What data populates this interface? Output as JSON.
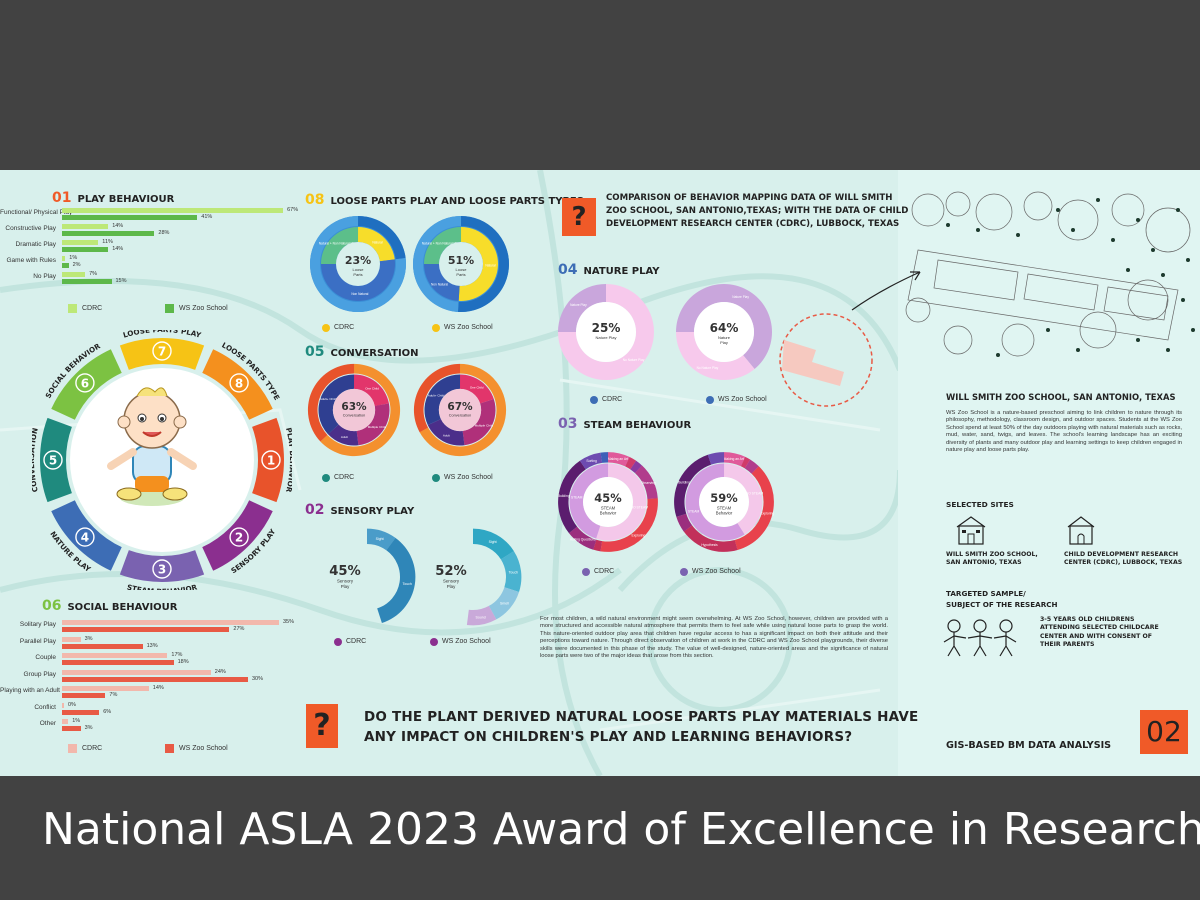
{
  "caption": "National ASLA 2023 Award of Excellence in Research",
  "colors": {
    "cdrc_light": "#bde878",
    "cdrc_green": "#5db84a",
    "social_light": "#f2b8ac",
    "social_red": "#e85a45",
    "poster_bg": "#d8f0ec",
    "accent_orange": "#f05a28"
  },
  "sec01": {
    "num": "01",
    "title": "PLAY BEHAVIOUR"
  },
  "sec08": {
    "num": "08",
    "title": "LOOSE PARTS PLAY AND LOOSE PARTS TYPES"
  },
  "sec05": {
    "num": "05",
    "title": "CONVERSATION"
  },
  "sec02": {
    "num": "02",
    "title": "SENSORY PLAY"
  },
  "sec06": {
    "num": "06",
    "title": "SOCIAL BEHAVIOUR"
  },
  "sec04": {
    "num": "04",
    "title": "NATURE PLAY"
  },
  "sec03": {
    "num": "03",
    "title": "STEAM BEHAVIOUR"
  },
  "comparison": {
    "q": "?",
    "lines": [
      "COMPARISON OF BEHAVIOR MAPPING DATA OF WILL SMITH",
      "ZOO SCHOOL, SAN ANTONIO,TEXAS; WITH THE DATA OF CHILD",
      "DEVELOPMENT RESEARCH CENTER (CDRC), LUBBOCK, TEXAS"
    ]
  },
  "legend": {
    "cdrc": "CDRC",
    "ws": "WS Zoo School"
  },
  "wheel": {
    "segments": [
      {
        "num": "1",
        "label": "PLAY BEHAVIOR",
        "color": "#e8532b"
      },
      {
        "num": "2",
        "label": "SENSORY PLAY",
        "color": "#8b2f8f"
      },
      {
        "num": "3",
        "label": "STEAM BEHAVIOR",
        "color": "#7a62b0"
      },
      {
        "num": "4",
        "label": "NATURE PLAY",
        "color": "#3d6db5"
      },
      {
        "num": "5",
        "label": "CONVERSATION",
        "color": "#1f8a7e"
      },
      {
        "num": "6",
        "label": "SOCIAL BEHAVIOR",
        "color": "#7cc242"
      },
      {
        "num": "7",
        "label": "LOOSE PARTS PLAY",
        "color": "#f6c315"
      },
      {
        "num": "8",
        "label": "LOOSE PARTS TYPE",
        "color": "#f4901e"
      }
    ]
  },
  "paragraph": "For most children, a wild natural environment might seem overwhelming. At WS Zoo School, however, children are provided with a more structured and accessible natural atmosphere that permits them to feel safe while using natural loose parts to grasp the world. This nature-oriented outdoor play area that children have regular access to has a significant impact on both their attitude and their perceptions toward nature. Through direct observation of children at work in the CDRC and WS Zoo School playgrounds, their diverse skills were documented in this phase of the study. The value of well-designed, nature-oriented areas and the significance of natural loose parts were two of the major ideas that arose from this section.",
  "bigq": {
    "q": "?",
    "line1": "DO THE PLANT DERIVED NATURAL LOOSE PARTS PLAY MATERIALS HAVE",
    "line2": "ANY IMPACT ON CHILDREN'S PLAY AND LEARNING BEHAVIORS?"
  },
  "site": {
    "title": "WILL SMITH  ZOO SCHOOL, SAN ANTONIO, TEXAS",
    "desc": "WS Zoo School is a nature-based preschool aiming to link children to nature through its philosophy, methodology, classroom design, and outdoor spaces. Students at the WS Zoo School spend at least 50% of the day outdoors playing with natural materials such as rocks, mud, water, sand, twigs, and leaves. The school's learning landscape has an exciting diversity of plants and many outdoor play and learning settings to keep children engaged in nature play and loose parts play.",
    "selected": "SELECTED SITES",
    "site1_l1": "WILL SMITH  ZOO SCHOOL,",
    "site1_l2": "SAN ANTONIO, TEXAS",
    "site2_l1": "CHILD DEVELOPMENT RESEARCH",
    "site2_l2": "CENTER (CDRC), LUBBOCK, TEXAS",
    "target_l1": "TARGETED SAMPLE/",
    "target_l2": "SUBJECT OF THE RESEARCH",
    "sample_l1": "3-5   YEARS   OLD   CHILDRENS",
    "sample_l2": "ATTENDING   SELECTED  CHILDCARE",
    "sample_l3": "CENTER   AND   WITH   CONSENT   OF",
    "sample_l4": "THEIR PARENTS",
    "gis": "GIS-BASED BM DATA ANALYSIS",
    "pagenum": "02"
  },
  "chart_data": [
    {
      "type": "bar",
      "orientation": "horizontal",
      "section": "01",
      "categories": [
        "Functional/ Physical Play",
        "Constructive Play",
        "Dramatic Play",
        "Game with Rules",
        "No Play"
      ],
      "series": [
        {
          "name": "CDRC",
          "values": [
            67,
            14,
            11,
            1,
            7
          ]
        },
        {
          "name": "WS Zoo School",
          "values": [
            41,
            28,
            14,
            2,
            15
          ]
        }
      ],
      "value_suffix": "%"
    },
    {
      "type": "bar",
      "orientation": "horizontal",
      "section": "06",
      "categories": [
        "Solitary Play",
        "Parallel Play",
        "Couple",
        "Group Play",
        "Playing with an Adult",
        "Conflict",
        "Other"
      ],
      "series": [
        {
          "name": "CDRC",
          "values": [
            35,
            3,
            17,
            24,
            14,
            0,
            1
          ]
        },
        {
          "name": "WS Zoo School",
          "values": [
            27,
            13,
            18,
            30,
            7,
            6,
            3
          ]
        }
      ],
      "value_suffix": "%"
    },
    {
      "type": "pie",
      "style": "donut",
      "section": "08",
      "series_name": "CDRC",
      "center": {
        "pct": "23%",
        "l1": "Loose",
        "l2": "Parts"
      },
      "inner": [
        {
          "label": "Natural",
          "value": 23,
          "color": "#f7dd2a"
        },
        {
          "label": "Non Natural",
          "value": 52,
          "color": "#3b6fc4"
        },
        {
          "label": "Natural + Non Natural Mix",
          "value": 25,
          "color": "#5cbf8a"
        }
      ],
      "outer_value": 23
    },
    {
      "type": "pie",
      "style": "donut",
      "section": "08",
      "series_name": "WS Zoo School",
      "center": {
        "pct": "51%",
        "l1": "Loose",
        "l2": "Parts"
      },
      "inner": [
        {
          "label": "Natural",
          "value": 51,
          "color": "#f7dd2a"
        },
        {
          "label": "Non Natural",
          "value": 24,
          "color": "#3b6fc4"
        },
        {
          "label": "Natural + Non Natural Mix",
          "value": 25,
          "color": "#5cbf8a"
        }
      ],
      "outer_value": 51
    },
    {
      "type": "pie",
      "style": "donut",
      "section": "05",
      "series_name": "CDRC",
      "center": {
        "pct": "63%",
        "l1": "Conversation",
        "l2": ""
      },
      "inner": [
        {
          "label": "One Child",
          "value": 22,
          "color": "#e2356b"
        },
        {
          "label": "Multiple Child",
          "value": 26,
          "color": "#b0307a"
        },
        {
          "label": "Adult",
          "value": 15,
          "color": "#4b2e8a"
        },
        {
          "label": "Adult+ Child",
          "value": 37,
          "color": "#2f3f91"
        }
      ],
      "outer_value": 63
    },
    {
      "type": "pie",
      "style": "donut",
      "section": "05",
      "series_name": "WS Zoo School",
      "center": {
        "pct": "67%",
        "l1": "Conversation",
        "l2": ""
      },
      "inner": [
        {
          "label": "One Child",
          "value": 20,
          "color": "#e2356b"
        },
        {
          "label": "Multiple Child",
          "value": 28,
          "color": "#b0307a"
        },
        {
          "label": "Adult",
          "value": 20,
          "color": "#4b2e8a"
        },
        {
          "label": "Adult+ Child",
          "value": 32,
          "color": "#2f3f91"
        }
      ],
      "outer_value": 67
    },
    {
      "type": "pie",
      "style": "partial-donut",
      "section": "02",
      "series_name": "CDRC",
      "center": {
        "pct": "45%",
        "l1": "Sensory",
        "l2": "Play"
      },
      "segments": [
        {
          "label": "Sight",
          "value": 10,
          "color": "#4a9cc9"
        },
        {
          "label": "Touch",
          "value": 35,
          "color": "#2f86b8"
        }
      ]
    },
    {
      "type": "pie",
      "style": "partial-donut",
      "section": "02",
      "series_name": "WS Zoo School",
      "center": {
        "pct": "52%",
        "l1": "Sensory",
        "l2": "Play"
      },
      "segments": [
        {
          "label": "Sight",
          "value": 16,
          "color": "#2fa7c4"
        },
        {
          "label": "Touch",
          "value": 14,
          "color": "#4ab3d0"
        },
        {
          "label": "Smell",
          "value": 12,
          "color": "#8dc6e0"
        },
        {
          "label": "Sound",
          "value": 10,
          "color": "#c9a9d9"
        }
      ]
    },
    {
      "type": "pie",
      "style": "donut",
      "section": "04",
      "series_name": "CDRC",
      "center": {
        "pct": "25%",
        "l1": "Nature Play",
        "l2": ""
      },
      "segments": [
        {
          "label": "Nature Play",
          "value": 25,
          "color": "#c9a6dc"
        },
        {
          "label": "No Nature Play",
          "value": 75,
          "color": "#f7c9ec"
        }
      ]
    },
    {
      "type": "pie",
      "style": "donut",
      "section": "04",
      "series_name": "WS Zoo School",
      "center": {
        "pct": "64%",
        "l1": "Nature",
        "l2": "Play"
      },
      "segments": [
        {
          "label": "Nature Play",
          "value": 64,
          "color": "#c9a6dc"
        },
        {
          "label": "No Nature Play",
          "value": 36,
          "color": "#f7c9ec"
        }
      ]
    },
    {
      "type": "pie",
      "style": "donut",
      "section": "03",
      "series_name": "CDRC",
      "center": {
        "pct": "45%",
        "l1": "STEAM",
        "l2": "Behavior"
      },
      "inner": [
        {
          "label": "NO STEAM",
          "value": 55,
          "color": "#f4c8ea"
        },
        {
          "label": "STEAM",
          "value": 45,
          "color": "#d29be0"
        }
      ],
      "outer": [
        {
          "label": "Making an Art",
          "value": 3,
          "color": "#e05a9a"
        },
        {
          "label": "Music",
          "value": 1,
          "color": "#d03a6a"
        },
        {
          "label": "Dance",
          "value": 1,
          "color": "#8a3aa0"
        },
        {
          "label": "Observing",
          "value": 5,
          "color": "#b13d8c"
        },
        {
          "label": "Exploring",
          "value": 12,
          "color": "#e8424c"
        },
        {
          "label": "Hypothesis",
          "value": 1,
          "color": "#c2305a"
        },
        {
          "label": "Asking Questions",
          "value": 4,
          "color": "#9b2e7e"
        },
        {
          "label": "Building",
          "value": 11,
          "color": "#5b1d6e"
        },
        {
          "label": "Sorting",
          "value": 3,
          "color": "#6d4bb0"
        },
        {
          "label": "Counting",
          "value": 1,
          "color": "#3f5fb8"
        }
      ]
    },
    {
      "type": "pie",
      "style": "donut",
      "section": "03",
      "series_name": "WS Zoo School",
      "center": {
        "pct": "59%",
        "l1": "STEAM",
        "l2": "Behavior"
      },
      "inner": [
        {
          "label": "NO STEAM",
          "value": 41,
          "color": "#f4c8ea"
        },
        {
          "label": "STEAM",
          "value": 59,
          "color": "#d29be0"
        }
      ],
      "outer": [
        {
          "label": "Making an Art",
          "value": 4,
          "color": "#e05a9a"
        },
        {
          "label": "Music",
          "value": 1,
          "color": "#d03a6a"
        },
        {
          "label": "Observing",
          "value": 2,
          "color": "#b13d8c"
        },
        {
          "label": "Exploring",
          "value": 19,
          "color": "#e8424c"
        },
        {
          "label": "Hypothesis",
          "value": 11,
          "color": "#c2305a"
        },
        {
          "label": "Asking Questions",
          "value": 3,
          "color": "#9b2e7e"
        },
        {
          "label": "Building",
          "value": 14,
          "color": "#5b1d6e"
        },
        {
          "label": "Sorting",
          "value": 3,
          "color": "#6d4bb0"
        }
      ]
    }
  ]
}
